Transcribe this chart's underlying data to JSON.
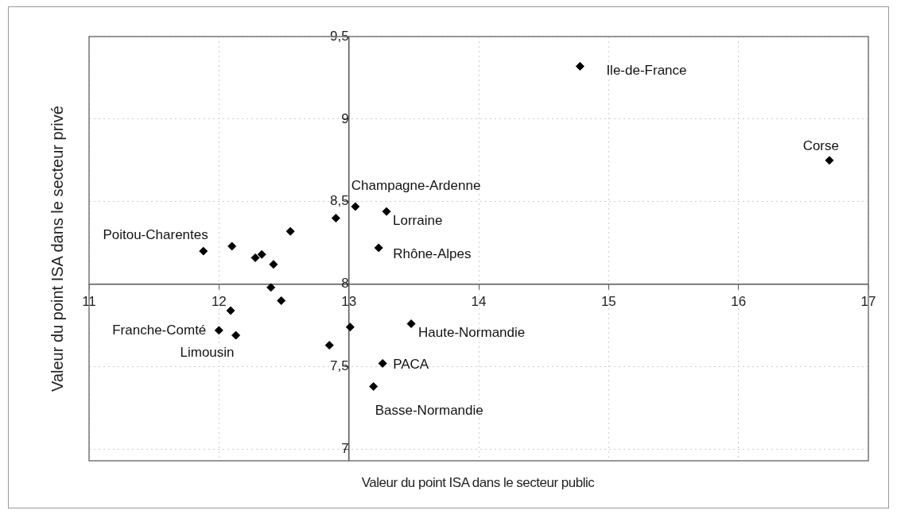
{
  "chart_data": {
    "type": "scatter",
    "xlabel": "Valeur du point ISA dans le secteur public",
    "ylabel": "Valeur du point ISA dans le secteur privé",
    "xlim": [
      11,
      17
    ],
    "ylim": [
      6.93,
      9.5
    ],
    "xticks": [
      11,
      12,
      13,
      14,
      15,
      16,
      17
    ],
    "yticks": [
      {
        "value": 7,
        "label": "7"
      },
      {
        "value": 7.5,
        "label": "7,5"
      },
      {
        "value": 8,
        "label": "8"
      },
      {
        "value": 8.5,
        "label": "8,5"
      },
      {
        "value": 9,
        "label": "9"
      },
      {
        "value": 9.5,
        "label": "9,5"
      }
    ],
    "grid": true,
    "marker": "diamond",
    "legend": false,
    "series": [
      {
        "color": "#000000",
        "x": [
          11.88,
          12.1,
          12.28,
          12.33,
          12.42,
          12.55,
          12.9,
          13.05,
          13.29,
          13.23,
          12.4,
          12.48,
          12.09,
          12.0,
          12.13,
          12.85,
          13.01,
          13.48,
          13.26,
          13.19,
          14.78,
          16.7
        ],
        "values": [
          8.2,
          8.23,
          8.16,
          8.18,
          8.12,
          8.32,
          8.4,
          8.47,
          8.44,
          8.22,
          7.98,
          7.9,
          7.84,
          7.72,
          7.69,
          7.63,
          7.74,
          7.76,
          7.52,
          7.38,
          9.32,
          8.75
        ]
      }
    ],
    "annotations": [
      {
        "text": "Poitou-Charentes",
        "x": 11.88,
        "y": 8.2
      },
      {
        "text": "Champagne-Ardenne",
        "x": 13.05,
        "y": 8.47
      },
      {
        "text": "Lorraine",
        "x": 13.29,
        "y": 8.44
      },
      {
        "text": "Rhône-Alpes",
        "x": 13.23,
        "y": 8.22
      },
      {
        "text": "Franche-Comté",
        "x": 12.0,
        "y": 7.72
      },
      {
        "text": "Limousin",
        "x": 12.13,
        "y": 7.69
      },
      {
        "text": "Haute-Normandie",
        "x": 13.48,
        "y": 7.76
      },
      {
        "text": "PACA",
        "x": 13.26,
        "y": 7.52
      },
      {
        "text": "Basse-Normandie",
        "x": 13.19,
        "y": 7.38
      },
      {
        "text": "Ile-de-France",
        "x": 14.78,
        "y": 9.32
      },
      {
        "text": "Corse",
        "x": 16.7,
        "y": 8.75
      }
    ]
  }
}
